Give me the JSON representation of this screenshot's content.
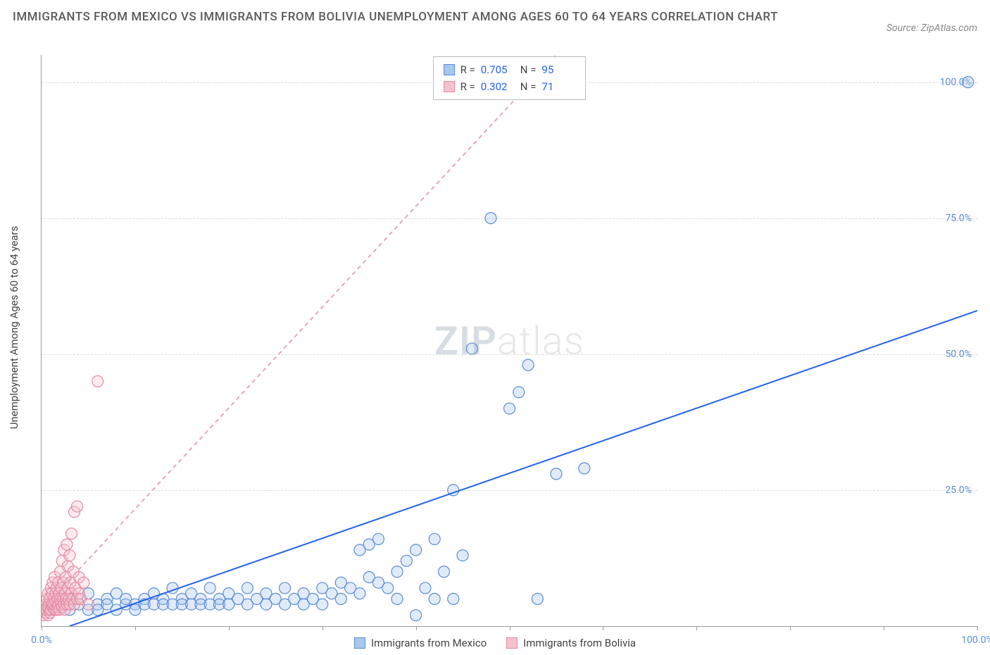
{
  "title": "IMMIGRANTS FROM MEXICO VS IMMIGRANTS FROM BOLIVIA UNEMPLOYMENT AMONG AGES 60 TO 64 YEARS CORRELATION CHART",
  "source": "Source: ZipAtlas.com",
  "y_axis_label": "Unemployment Among Ages 60 to 64 years",
  "watermark": {
    "bold": "ZIP",
    "light": "atlas"
  },
  "chart": {
    "type": "scatter",
    "xlim": [
      0,
      100
    ],
    "ylim": [
      0,
      105
    ],
    "x_ticks": [
      0,
      10,
      20,
      30,
      40,
      50,
      60,
      70,
      80,
      90,
      100
    ],
    "x_tick_labels": {
      "0": "0.0%",
      "100": "100.0%"
    },
    "y_ticks": [
      25,
      50,
      75,
      100
    ],
    "y_tick_labels": [
      "25.0%",
      "50.0%",
      "75.0%",
      "100.0%"
    ],
    "grid_color": "#dddddd",
    "background_color": "#ffffff",
    "axis_color": "#999999",
    "tick_label_color": "#5b8dd6",
    "tick_fontsize": 14,
    "marker_radius": 8,
    "marker_stroke_width": 1.2,
    "marker_fill_opacity": 0.35,
    "trendline_width": 2
  },
  "series": [
    {
      "name": "Immigrants from Mexico",
      "color_fill": "#a9c6ec",
      "color_stroke": "#5b8dd6",
      "trendline_color": "#2563eb",
      "trendline_dash": "none",
      "trendline": {
        "x1": 3,
        "y1": 0,
        "x2": 100,
        "y2": 58
      },
      "R": "0.705",
      "N": "95",
      "points": [
        [
          1,
          3
        ],
        [
          2,
          4
        ],
        [
          3,
          3
        ],
        [
          3,
          5
        ],
        [
          4,
          4
        ],
        [
          5,
          3
        ],
        [
          5,
          6
        ],
        [
          6,
          4
        ],
        [
          6,
          3
        ],
        [
          7,
          5
        ],
        [
          7,
          4
        ],
        [
          8,
          3
        ],
        [
          8,
          6
        ],
        [
          9,
          4
        ],
        [
          9,
          5
        ],
        [
          10,
          4
        ],
        [
          10,
          3
        ],
        [
          11,
          5
        ],
        [
          11,
          4
        ],
        [
          12,
          4
        ],
        [
          12,
          6
        ],
        [
          13,
          5
        ],
        [
          13,
          4
        ],
        [
          14,
          4
        ],
        [
          14,
          7
        ],
        [
          15,
          5
        ],
        [
          15,
          4
        ],
        [
          16,
          4
        ],
        [
          16,
          6
        ],
        [
          17,
          5
        ],
        [
          17,
          4
        ],
        [
          18,
          4
        ],
        [
          18,
          7
        ],
        [
          19,
          5
        ],
        [
          19,
          4
        ],
        [
          20,
          4
        ],
        [
          20,
          6
        ],
        [
          21,
          5
        ],
        [
          22,
          4
        ],
        [
          22,
          7
        ],
        [
          23,
          5
        ],
        [
          24,
          4
        ],
        [
          24,
          6
        ],
        [
          25,
          5
        ],
        [
          26,
          4
        ],
        [
          26,
          7
        ],
        [
          27,
          5
        ],
        [
          28,
          6
        ],
        [
          28,
          4
        ],
        [
          29,
          5
        ],
        [
          30,
          4
        ],
        [
          30,
          7
        ],
        [
          31,
          6
        ],
        [
          32,
          5
        ],
        [
          32,
          8
        ],
        [
          33,
          7
        ],
        [
          34,
          6
        ],
        [
          34,
          14
        ],
        [
          35,
          9
        ],
        [
          35,
          15
        ],
        [
          36,
          8
        ],
        [
          36,
          16
        ],
        [
          37,
          7
        ],
        [
          38,
          10
        ],
        [
          38,
          5
        ],
        [
          39,
          12
        ],
        [
          40,
          2
        ],
        [
          40,
          14
        ],
        [
          41,
          7
        ],
        [
          42,
          5
        ],
        [
          42,
          16
        ],
        [
          43,
          10
        ],
        [
          44,
          5
        ],
        [
          44,
          25
        ],
        [
          45,
          13
        ],
        [
          46,
          51
        ],
        [
          48,
          75
        ],
        [
          50,
          40
        ],
        [
          51,
          43
        ],
        [
          52,
          48
        ],
        [
          53,
          5
        ],
        [
          55,
          28
        ],
        [
          58,
          29
        ],
        [
          99,
          100
        ]
      ]
    },
    {
      "name": "Immigrants from Bolivia",
      "color_fill": "#f4c2cf",
      "color_stroke": "#e48aa4",
      "trendline_color": "#e8a5b8",
      "trendline_dash": "6,5",
      "trendline": {
        "x1": 0,
        "y1": 3,
        "x2": 55,
        "y2": 105
      },
      "R": "0.302",
      "N": "71",
      "points": [
        [
          0.2,
          2
        ],
        [
          0.3,
          3
        ],
        [
          0.4,
          2.5
        ],
        [
          0.5,
          4
        ],
        [
          0.5,
          3
        ],
        [
          0.6,
          5
        ],
        [
          0.6,
          3.5
        ],
        [
          0.7,
          2
        ],
        [
          0.7,
          6
        ],
        [
          0.8,
          4
        ],
        [
          0.8,
          3
        ],
        [
          0.9,
          5
        ],
        [
          0.9,
          2.5
        ],
        [
          1.0,
          7
        ],
        [
          1.0,
          3
        ],
        [
          1.1,
          4
        ],
        [
          1.1,
          6
        ],
        [
          1.2,
          3.5
        ],
        [
          1.2,
          8
        ],
        [
          1.3,
          5
        ],
        [
          1.3,
          4
        ],
        [
          1.4,
          3
        ],
        [
          1.4,
          9
        ],
        [
          1.5,
          6
        ],
        [
          1.5,
          4.5
        ],
        [
          1.6,
          3
        ],
        [
          1.6,
          7
        ],
        [
          1.7,
          5
        ],
        [
          1.7,
          3.5
        ],
        [
          1.8,
          4
        ],
        [
          1.8,
          8
        ],
        [
          1.9,
          6
        ],
        [
          1.9,
          3
        ],
        [
          2.0,
          5
        ],
        [
          2.0,
          10
        ],
        [
          2.1,
          4
        ],
        [
          2.1,
          7
        ],
        [
          2.2,
          3.5
        ],
        [
          2.2,
          12
        ],
        [
          2.3,
          5
        ],
        [
          2.3,
          8
        ],
        [
          2.4,
          4
        ],
        [
          2.4,
          14
        ],
        [
          2.5,
          6
        ],
        [
          2.5,
          3
        ],
        [
          2.6,
          9
        ],
        [
          2.6,
          5
        ],
        [
          2.7,
          15
        ],
        [
          2.7,
          4
        ],
        [
          2.8,
          7
        ],
        [
          2.8,
          11
        ],
        [
          2.9,
          5
        ],
        [
          3.0,
          13
        ],
        [
          3.0,
          4
        ],
        [
          3.1,
          8
        ],
        [
          3.2,
          6
        ],
        [
          3.2,
          17
        ],
        [
          3.3,
          5
        ],
        [
          3.4,
          10
        ],
        [
          3.5,
          4
        ],
        [
          3.5,
          21
        ],
        [
          3.6,
          7
        ],
        [
          3.8,
          5
        ],
        [
          3.8,
          22
        ],
        [
          4.0,
          9
        ],
        [
          4.0,
          6
        ],
        [
          4.2,
          5
        ],
        [
          4.5,
          8
        ],
        [
          5.0,
          4
        ],
        [
          6,
          45
        ]
      ]
    }
  ],
  "legend_top": {
    "r_label": "R =",
    "n_label": "N ="
  },
  "legend_bottom": [
    {
      "label": "Immigrants from Mexico",
      "fill": "#a9c6ec",
      "stroke": "#5b8dd6"
    },
    {
      "label": "Immigrants from Bolivia",
      "fill": "#f4c2cf",
      "stroke": "#e48aa4"
    }
  ]
}
